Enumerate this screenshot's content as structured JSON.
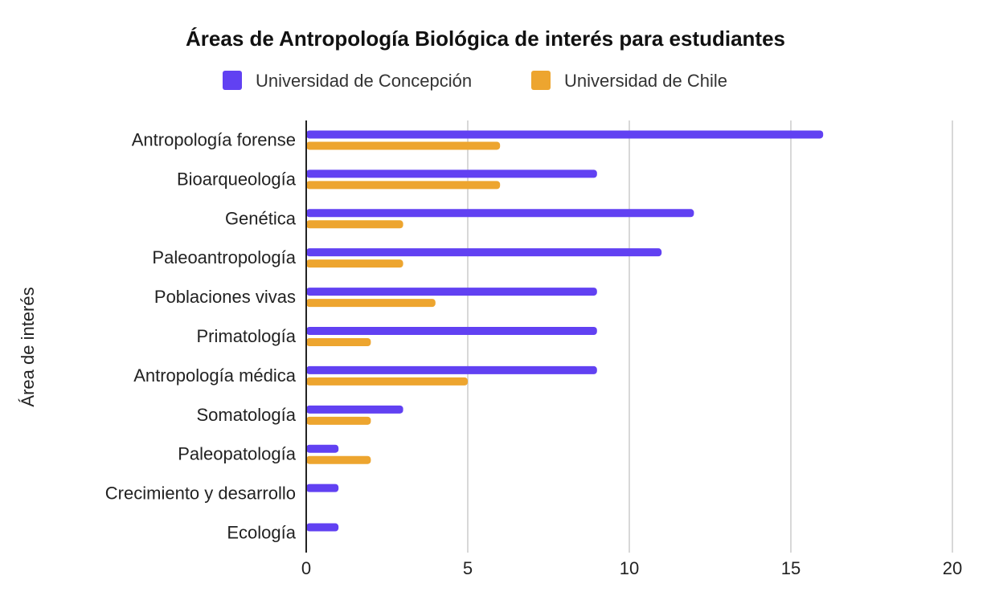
{
  "chart_data": {
    "type": "bar",
    "orientation": "horizontal",
    "title": "Áreas de Antropología Biológica de interés para estudiantes",
    "xlabel": "",
    "ylabel": "Área de interés",
    "xlim": [
      0,
      20
    ],
    "xticks": [
      "0",
      "5",
      "10",
      "15",
      "20"
    ],
    "xtick_values": [
      0,
      5,
      10,
      15,
      20
    ],
    "grid": true,
    "legend_position": "top",
    "categories": [
      "Antropología forense",
      "Bioarqueología",
      "Genética",
      "Paleoantropología",
      "Poblaciones vivas",
      "Primatología",
      "Antropología médica",
      "Somatología",
      "Paleopatología",
      "Crecimiento y desarrollo",
      "Ecología"
    ],
    "series": [
      {
        "name": "Universidad de Concepción",
        "color": "#6141f2",
        "values": [
          16,
          9,
          12,
          11,
          9,
          9,
          9,
          3,
          1,
          1,
          1
        ]
      },
      {
        "name": "Universidad de Chile",
        "color": "#eda52f",
        "values": [
          6,
          6,
          3,
          3,
          4,
          2,
          5,
          2,
          2,
          0,
          0
        ]
      }
    ]
  }
}
